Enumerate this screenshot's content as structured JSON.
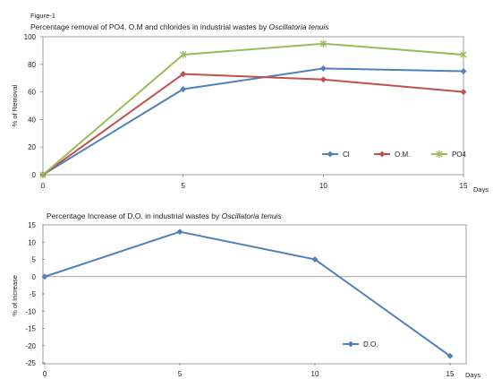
{
  "figure_label": "Figure-1",
  "chart_data": [
    {
      "type": "line",
      "title_parts": [
        "Percentage removal of PO4, O.M and chlorides in industrial wastes by ",
        "Oscillatoria tenuis"
      ],
      "xlabel": "Days",
      "ylabel": "% of Removal",
      "x": [
        0,
        5,
        10,
        15
      ],
      "xlim": [
        0,
        15
      ],
      "ylim": [
        0,
        100
      ],
      "xticks": [
        "0",
        "5",
        "10",
        "15"
      ],
      "yticks": [
        "0",
        "20",
        "40",
        "60",
        "80",
        "100"
      ],
      "legend_position": "bottom-right",
      "series": [
        {
          "name": "Cl",
          "color": "#4f81bd",
          "marker": "diamond",
          "values": [
            0,
            62,
            77,
            75
          ]
        },
        {
          "name": "O.M.",
          "color": "#c0504d",
          "marker": "diamond",
          "values": [
            0,
            73,
            69,
            60
          ]
        },
        {
          "name": "PO4",
          "color": "#9bbb59",
          "marker": "star",
          "values": [
            0,
            87,
            95,
            87
          ]
        }
      ]
    },
    {
      "type": "line",
      "title_parts": [
        "Percentage Increase of D.O. in industrial wastes by ",
        "Oscillatoria tenuis"
      ],
      "xlabel": "Days",
      "ylabel": "% of Increase",
      "x": [
        0,
        5,
        10,
        15
      ],
      "xlim": [
        0,
        15
      ],
      "ylim": [
        -25,
        15
      ],
      "xticks": [
        "0",
        "5",
        "10",
        "15"
      ],
      "yticks": [
        "-25",
        "-20",
        "-15",
        "-10",
        "-5",
        "0",
        "5",
        "10",
        "15"
      ],
      "legend_position": "bottom-right",
      "series": [
        {
          "name": "D.O.",
          "color": "#4f81bd",
          "marker": "diamond",
          "values": [
            0,
            13,
            5,
            -23
          ]
        }
      ]
    }
  ]
}
